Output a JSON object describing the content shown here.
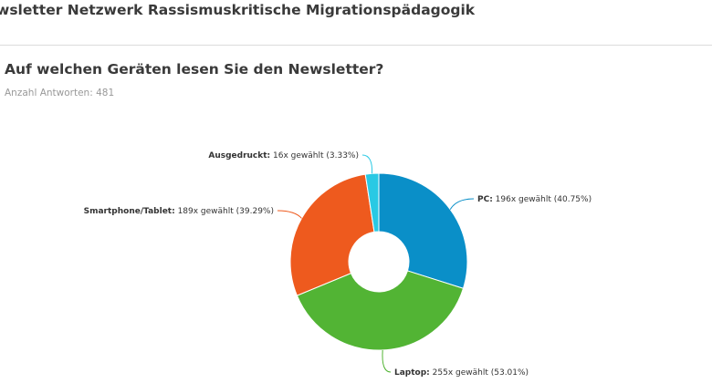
{
  "header": {
    "survey_title": "wsletter Netzwerk Rassismuskritische Migrationspädagogik"
  },
  "question": {
    "title": "Auf welchen Geräten lesen Sie den Newsletter?",
    "answer_count": "Anzahl Antworten: 481"
  },
  "chart_data": {
    "type": "pie",
    "donut": true,
    "title": "",
    "slices": [
      {
        "label": "PC",
        "count": 196,
        "suffix": " 196x gewählt (40.75%)",
        "percent": 40.75,
        "color": "#0a8fc8"
      },
      {
        "label": "Laptop",
        "count": 255,
        "suffix": " 255x gewählt (53.01%)",
        "percent": 53.01,
        "color": "#52b434"
      },
      {
        "label": "Smartphone/Tablet",
        "count": 189,
        "suffix": " 189x gewählt (39.29%)",
        "percent": 39.29,
        "color": "#ee5a1e"
      },
      {
        "label": "Ausgedruckt",
        "count": 16,
        "suffix": " 16x gewählt (3.33%)",
        "percent": 3.33,
        "color": "#29c9e4"
      }
    ]
  }
}
